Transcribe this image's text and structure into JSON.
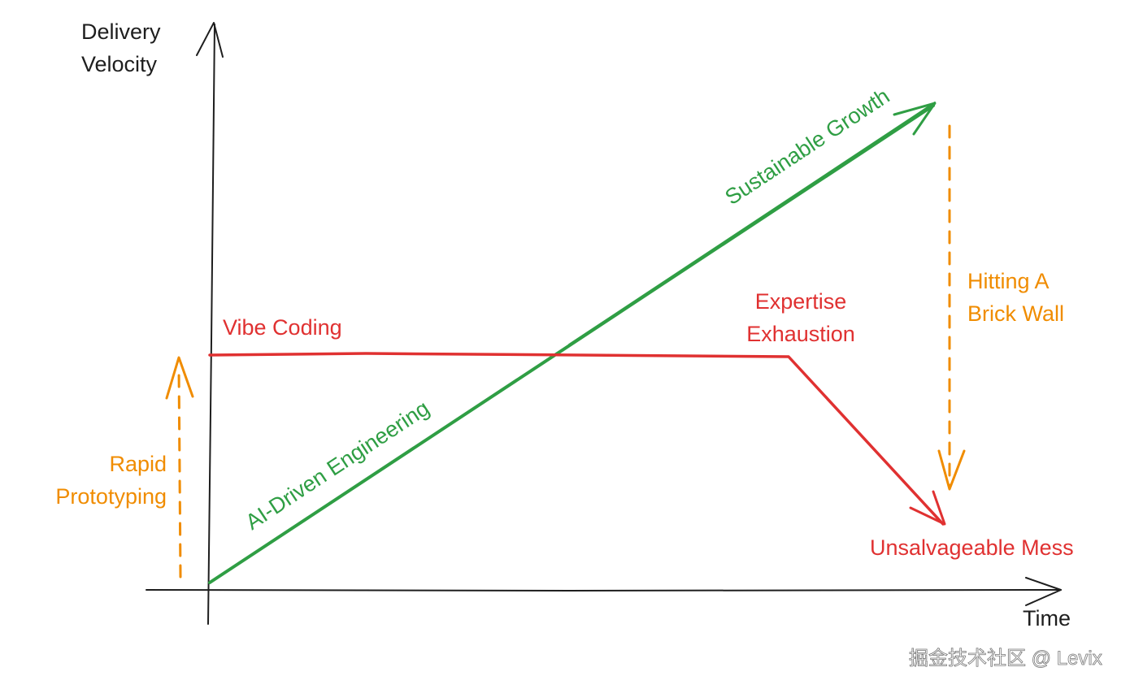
{
  "axes": {
    "y_label_line1": "Delivery",
    "y_label_line2": "Velocity",
    "x_label": "Time"
  },
  "lines": {
    "sustainable_growth": "Sustainable Growth",
    "ai_driven": "AI-Driven Engineering",
    "vibe_coding": "Vibe Coding",
    "expertise_line1": "Expertise",
    "expertise_line2": "Exhaustion",
    "mess": "Unsalvageable Mess"
  },
  "annotations": {
    "brick_line1": "Hitting A",
    "brick_line2": "Brick Wall",
    "rapid_line1": "Rapid",
    "rapid_line2": "Prototyping"
  },
  "watermark": "掘金技术社区 @ Levix",
  "colors": {
    "green": "#2f9e44",
    "red": "#e03131",
    "orange": "#f08c00",
    "axis": "#1e1e1e"
  }
}
